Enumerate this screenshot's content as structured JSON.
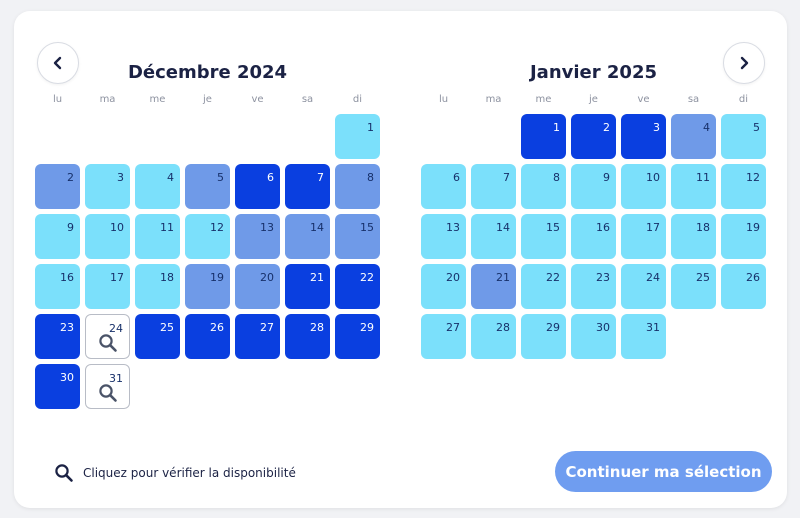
{
  "nav": {
    "prev_icon": "chevron-left-icon",
    "next_icon": "chevron-right-icon"
  },
  "weekdays": [
    "lu",
    "ma",
    "me",
    "je",
    "ve",
    "sa",
    "di"
  ],
  "status_colors": {
    "available": "#7be0fb",
    "limited": "#6f9ae8",
    "busy": "#0a3fe0",
    "check": "#ffffff"
  },
  "months": [
    {
      "title": "Décembre 2024",
      "start_offset": 6,
      "days": [
        {
          "d": "1",
          "s": "available"
        },
        {
          "d": "2",
          "s": "limited"
        },
        {
          "d": "3",
          "s": "available"
        },
        {
          "d": "4",
          "s": "available"
        },
        {
          "d": "5",
          "s": "limited"
        },
        {
          "d": "6",
          "s": "busy"
        },
        {
          "d": "7",
          "s": "busy"
        },
        {
          "d": "8",
          "s": "limited"
        },
        {
          "d": "9",
          "s": "available"
        },
        {
          "d": "10",
          "s": "available"
        },
        {
          "d": "11",
          "s": "available"
        },
        {
          "d": "12",
          "s": "available"
        },
        {
          "d": "13",
          "s": "limited"
        },
        {
          "d": "14",
          "s": "limited"
        },
        {
          "d": "15",
          "s": "limited"
        },
        {
          "d": "16",
          "s": "available"
        },
        {
          "d": "17",
          "s": "available"
        },
        {
          "d": "18",
          "s": "available"
        },
        {
          "d": "19",
          "s": "limited"
        },
        {
          "d": "20",
          "s": "limited"
        },
        {
          "d": "21",
          "s": "busy"
        },
        {
          "d": "22",
          "s": "busy"
        },
        {
          "d": "23",
          "s": "busy"
        },
        {
          "d": "24",
          "s": "check"
        },
        {
          "d": "25",
          "s": "busy"
        },
        {
          "d": "26",
          "s": "busy"
        },
        {
          "d": "27",
          "s": "busy"
        },
        {
          "d": "28",
          "s": "busy"
        },
        {
          "d": "29",
          "s": "busy"
        },
        {
          "d": "30",
          "s": "busy"
        },
        {
          "d": "31",
          "s": "check"
        }
      ]
    },
    {
      "title": "Janvier 2025",
      "start_offset": 2,
      "days": [
        {
          "d": "1",
          "s": "busy"
        },
        {
          "d": "2",
          "s": "busy"
        },
        {
          "d": "3",
          "s": "busy"
        },
        {
          "d": "4",
          "s": "limited"
        },
        {
          "d": "5",
          "s": "available"
        },
        {
          "d": "6",
          "s": "available"
        },
        {
          "d": "7",
          "s": "available"
        },
        {
          "d": "8",
          "s": "available"
        },
        {
          "d": "9",
          "s": "available"
        },
        {
          "d": "10",
          "s": "available"
        },
        {
          "d": "11",
          "s": "available"
        },
        {
          "d": "12",
          "s": "available"
        },
        {
          "d": "13",
          "s": "available"
        },
        {
          "d": "14",
          "s": "available"
        },
        {
          "d": "15",
          "s": "available"
        },
        {
          "d": "16",
          "s": "available"
        },
        {
          "d": "17",
          "s": "available"
        },
        {
          "d": "18",
          "s": "available"
        },
        {
          "d": "19",
          "s": "available"
        },
        {
          "d": "20",
          "s": "available"
        },
        {
          "d": "21",
          "s": "limited"
        },
        {
          "d": "22",
          "s": "available"
        },
        {
          "d": "23",
          "s": "available"
        },
        {
          "d": "24",
          "s": "available"
        },
        {
          "d": "25",
          "s": "available"
        },
        {
          "d": "26",
          "s": "available"
        },
        {
          "d": "27",
          "s": "available"
        },
        {
          "d": "28",
          "s": "available"
        },
        {
          "d": "29",
          "s": "available"
        },
        {
          "d": "30",
          "s": "available"
        },
        {
          "d": "31",
          "s": "available"
        }
      ]
    }
  ],
  "legend": {
    "icon": "search-icon",
    "text": "Cliquez pour vérifier la disponibilité"
  },
  "cta": {
    "label": "Continuer ma sélection"
  }
}
